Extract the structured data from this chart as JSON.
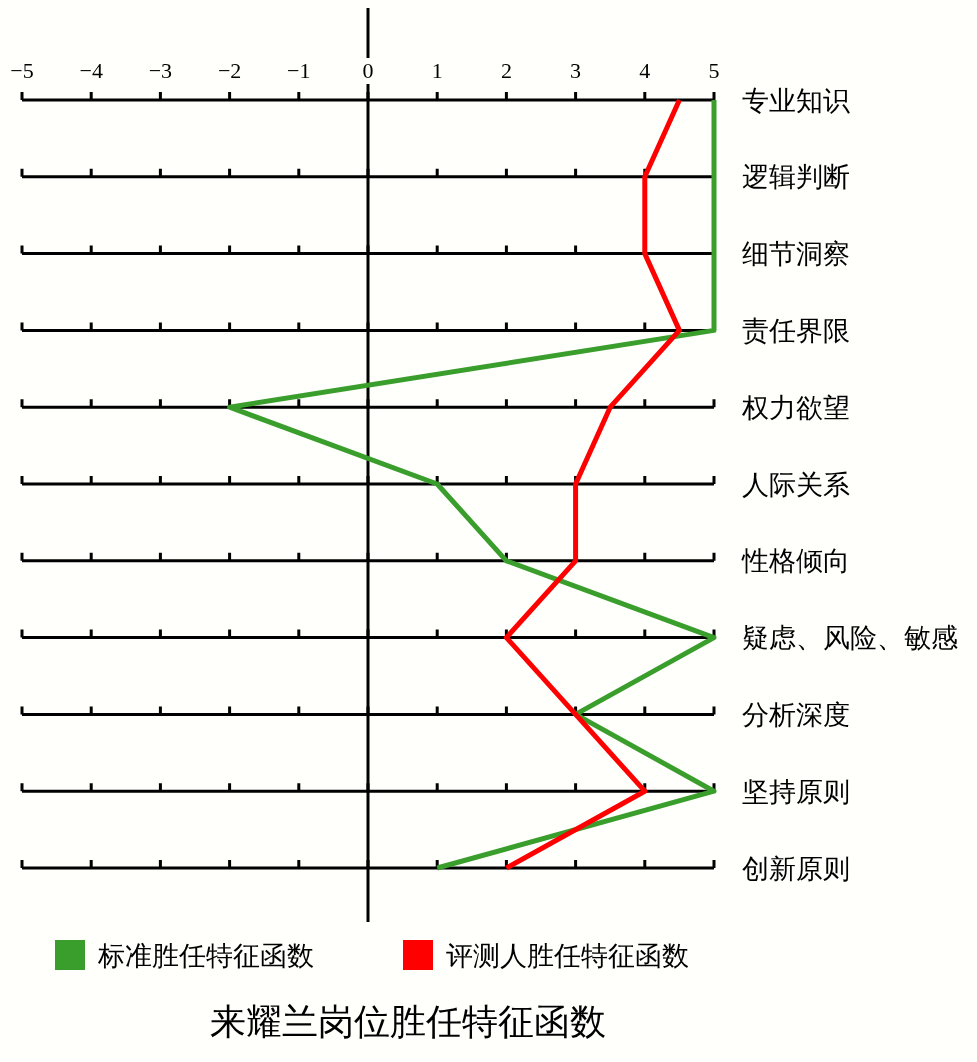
{
  "chart_data": {
    "type": "line",
    "orientation": "horizontal",
    "title": "来耀兰岗位胜任特征函数",
    "categories": [
      "专业知识",
      "逻辑判断",
      "细节洞察",
      "责任界限",
      "权力欲望",
      "人际关系",
      "性格倾向",
      "疑虑、风险、敏感",
      "分析深度",
      "坚持原则",
      "创新原则"
    ],
    "series": [
      {
        "name": "标准胜任特征函数",
        "color": "#3a9e2c",
        "values": [
          5,
          5,
          5,
          5,
          -2,
          1,
          2,
          5,
          3,
          5,
          1
        ]
      },
      {
        "name": "评测人胜任特征函数",
        "color": "#ff0000",
        "values": [
          4.5,
          4,
          4,
          4.5,
          3.5,
          3,
          3,
          2,
          3,
          4,
          2
        ]
      }
    ],
    "xlim": [
      -5,
      5
    ],
    "xticks": [
      {
        "value": -5,
        "label": "−5"
      },
      {
        "value": -4,
        "label": "−4"
      },
      {
        "value": -3,
        "label": "−3"
      },
      {
        "value": -2,
        "label": "−2"
      },
      {
        "value": -1,
        "label": "−1"
      },
      0,
      1,
      2,
      3,
      4,
      5
    ],
    "grid": true,
    "legend": "bottom"
  }
}
